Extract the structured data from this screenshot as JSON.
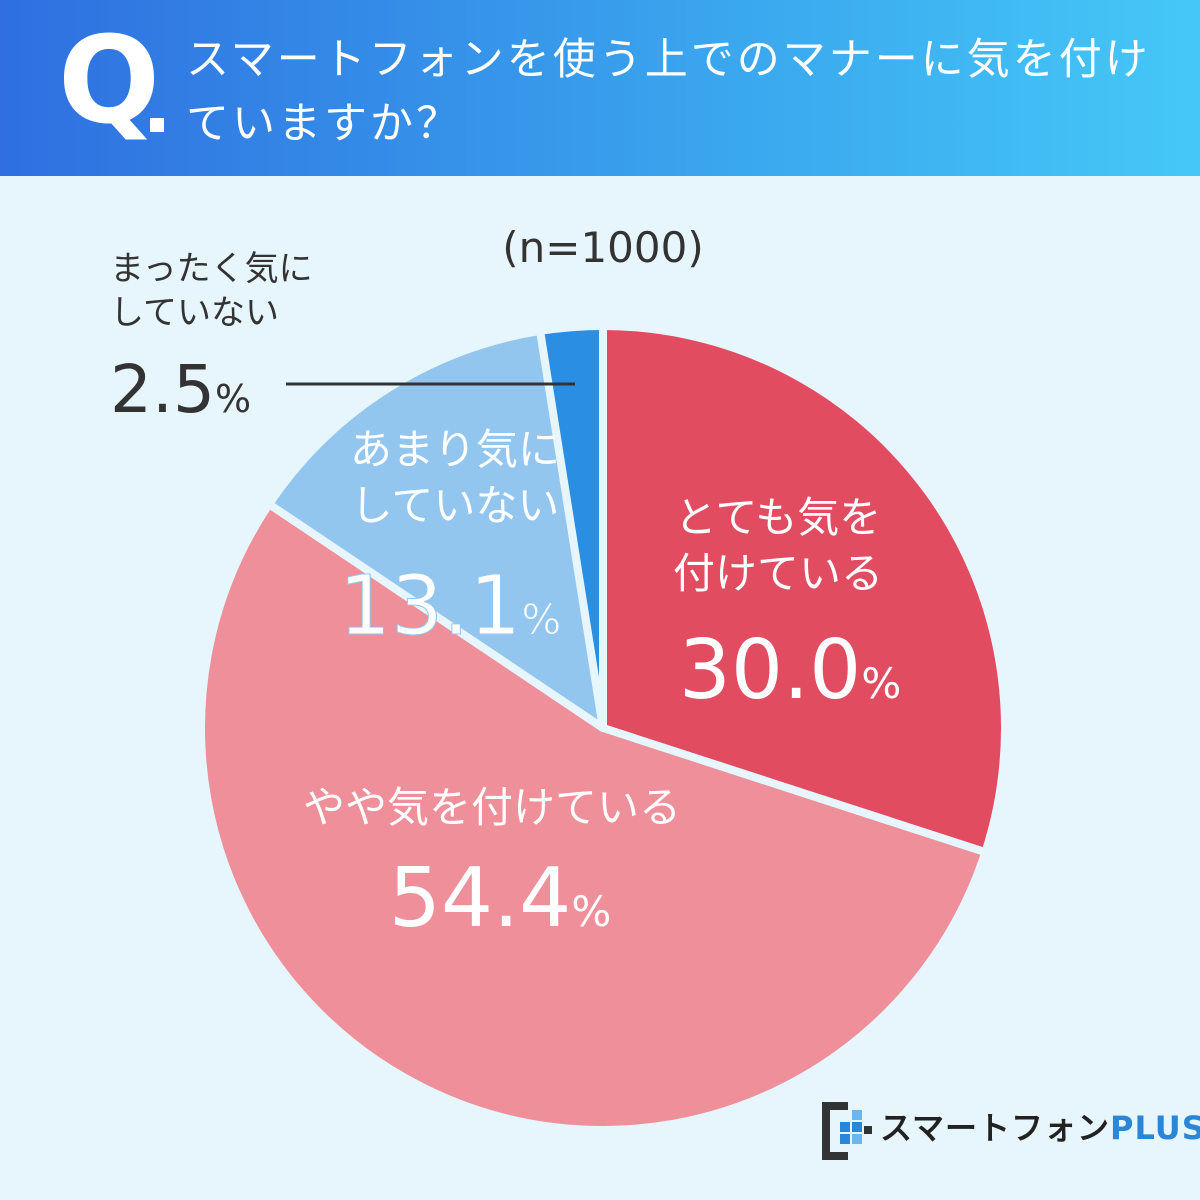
{
  "header": {
    "q_letter": "Q",
    "question": "スマートフォンを使う上でのマナーに気を付けていますか？"
  },
  "chart_data": {
    "type": "pie",
    "sample_label": "(n=1000)",
    "slices": [
      {
        "label": "とても気を付けている",
        "value": 30.0,
        "value_text": "30.0",
        "color": "#e14c60"
      },
      {
        "label": "やや気を付けている",
        "value": 54.4,
        "value_text": "54.4",
        "color": "#ee8f9a"
      },
      {
        "label": "あまり気にしていない",
        "value": 13.1,
        "value_text": "13.1",
        "color": "#93c6ef"
      },
      {
        "label": "まったく気にしていない",
        "value": 2.5,
        "value_text": "2.5",
        "color": "#2a8ee2"
      }
    ],
    "unit": "%"
  },
  "labels": {
    "slice1_line1": "とても気を",
    "slice1_line2": "付けている",
    "slice2_line1": "やや気を付けている",
    "slice3_line1": "あまり気に",
    "slice3_line2": "していない",
    "slice4_line1": "まったく気に",
    "slice4_line2": "していない"
  },
  "brand": {
    "name": "スマートフォン",
    "plus": "PLUS"
  }
}
